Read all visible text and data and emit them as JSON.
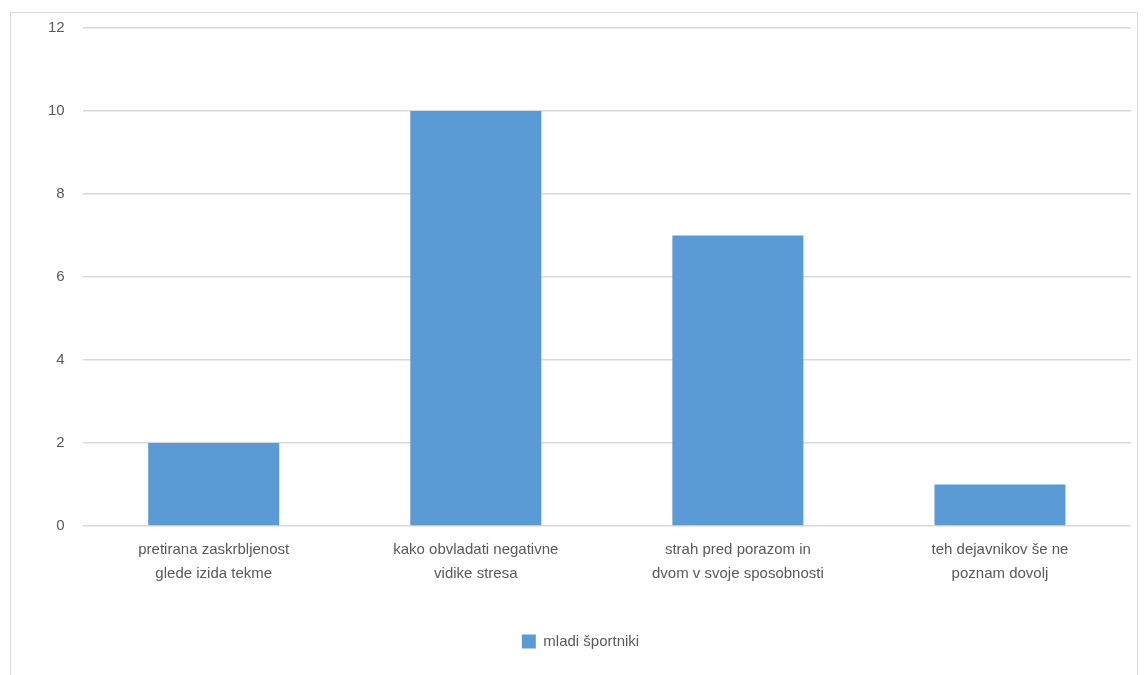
{
  "chart_data": {
    "type": "bar",
    "categories": [
      "pretirana zaskrbljenost glede izida tekme",
      "kako obvladati negativne vidike stresa",
      "strah pred porazom in dvom v svoje sposobnosti",
      "teh dejavnikov še ne poznam dovolj"
    ],
    "series": [
      {
        "name": "mladi športniki",
        "color": "#5b9bd5",
        "values": [
          2,
          10,
          7,
          1
        ]
      }
    ],
    "ylim": [
      0,
      12
    ],
    "yticks": [
      0,
      2,
      4,
      6,
      8,
      10,
      12
    ],
    "grid": "y",
    "legend": "bottom"
  }
}
